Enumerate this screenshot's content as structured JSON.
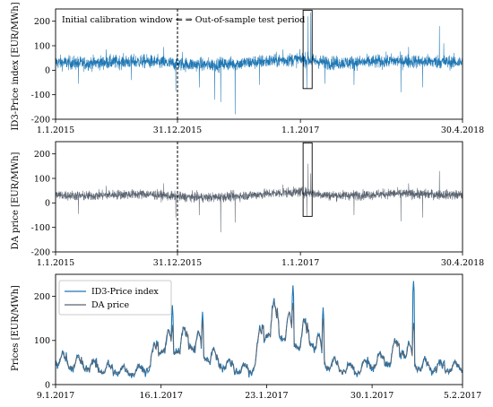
{
  "colors": {
    "id3": "#1f77b4",
    "da": "#5a6470"
  },
  "chart_data": [
    {
      "type": "line",
      "ylabel": "ID3-Price index [EUR/MWh]",
      "ylim": [
        -200,
        250
      ],
      "yticks": [
        -200,
        -100,
        0,
        100,
        200
      ],
      "xticks": [
        "1.1.2015",
        "31.12.2015",
        "1.1.2017",
        "30.4.2018"
      ],
      "xrange": [
        "2015-01-01",
        "2018-04-30"
      ],
      "annotation": "Initial calibration window ⇐ ⇒ Out-of-sample test period",
      "split_date": "2015-12-31",
      "highlight": {
        "x_from": "2017-01-09",
        "x_to": "2017-02-05",
        "y_from": -75,
        "y_to": 245
      },
      "series": [
        {
          "color": "id3",
          "baseline": [
            [
              "2015-01-01",
              32
            ],
            [
              "2015-04-01",
              28
            ],
            [
              "2015-07-01",
              34
            ],
            [
              "2015-10-01",
              36
            ],
            [
              "2016-01-01",
              25
            ],
            [
              "2016-04-01",
              22
            ],
            [
              "2016-07-01",
              28
            ],
            [
              "2016-10-01",
              38
            ],
            [
              "2017-01-01",
              45
            ],
            [
              "2017-04-01",
              30
            ],
            [
              "2017-07-01",
              32
            ],
            [
              "2017-10-01",
              38
            ],
            [
              "2018-01-01",
              36
            ],
            [
              "2018-04-30",
              32
            ]
          ],
          "noise": 20,
          "spikes": [
            [
              "2015-03-10",
              -55
            ],
            [
              "2015-06-01",
              85
            ],
            [
              "2015-08-15",
              -40
            ],
            [
              "2015-11-20",
              95
            ],
            [
              "2015-12-26",
              -85
            ],
            [
              "2016-01-15",
              75
            ],
            [
              "2016-03-05",
              -70
            ],
            [
              "2016-04-20",
              -120
            ],
            [
              "2016-05-08",
              -130
            ],
            [
              "2016-06-20",
              -180
            ],
            [
              "2016-09-01",
              -60
            ],
            [
              "2016-11-10",
              85
            ],
            [
              "2017-01-24",
              220
            ],
            [
              "2017-02-01",
              235
            ],
            [
              "2017-01-20",
              -75
            ],
            [
              "2017-03-15",
              -55
            ],
            [
              "2017-06-10",
              -60
            ],
            [
              "2017-10-28",
              -90
            ],
            [
              "2017-11-20",
              95
            ],
            [
              "2018-01-01",
              -70
            ],
            [
              "2018-02-20",
              180
            ],
            [
              "2018-03-05",
              110
            ]
          ]
        }
      ]
    },
    {
      "type": "line",
      "ylabel": "DA price [EUR/MWh]",
      "ylim": [
        -200,
        250
      ],
      "yticks": [
        -200,
        -100,
        0,
        100,
        200
      ],
      "xticks": [
        "1.1.2015",
        "31.12.2015",
        "1.1.2017",
        "30.4.2018"
      ],
      "xrange": [
        "2015-01-01",
        "2018-04-30"
      ],
      "split_date": "2015-12-31",
      "highlight": {
        "x_from": "2017-01-09",
        "x_to": "2017-02-05",
        "y_from": -55,
        "y_to": 245
      },
      "series": [
        {
          "color": "da",
          "baseline": [
            [
              "2015-01-01",
              32
            ],
            [
              "2015-04-01",
              28
            ],
            [
              "2015-07-01",
              34
            ],
            [
              "2015-10-01",
              36
            ],
            [
              "2016-01-01",
              25
            ],
            [
              "2016-04-01",
              22
            ],
            [
              "2016-07-01",
              28
            ],
            [
              "2016-10-01",
              38
            ],
            [
              "2017-01-01",
              45
            ],
            [
              "2017-04-01",
              30
            ],
            [
              "2017-07-01",
              32
            ],
            [
              "2017-10-01",
              38
            ],
            [
              "2018-01-01",
              36
            ],
            [
              "2018-04-30",
              32
            ]
          ],
          "noise": 14,
          "spikes": [
            [
              "2015-03-10",
              -45
            ],
            [
              "2015-06-01",
              70
            ],
            [
              "2015-11-20",
              80
            ],
            [
              "2015-12-26",
              -60
            ],
            [
              "2016-03-05",
              -50
            ],
            [
              "2016-05-08",
              -120
            ],
            [
              "2016-06-20",
              -80
            ],
            [
              "2016-11-10",
              75
            ],
            [
              "2017-01-24",
              160
            ],
            [
              "2017-02-01",
              120
            ],
            [
              "2017-01-20",
              -55
            ],
            [
              "2017-06-10",
              -50
            ],
            [
              "2017-10-28",
              -75
            ],
            [
              "2017-11-20",
              80
            ],
            [
              "2018-01-01",
              -60
            ],
            [
              "2018-02-20",
              130
            ]
          ]
        }
      ]
    },
    {
      "type": "line",
      "ylabel": "Prices [EUR/MWh]",
      "ylim": [
        0,
        250
      ],
      "yticks": [
        0,
        100,
        200
      ],
      "xticks": [
        "9.1.2017",
        "16.1.2017",
        "23.1.2017",
        "30.1.2017",
        "5.2.2017"
      ],
      "xrange": [
        "2017-01-09",
        "2017-02-05"
      ],
      "legend": [
        "ID3-Price index",
        "DA price"
      ],
      "legend_position": "top-left",
      "daily_profile": [
        [
          "2017-01-09",
          72
        ],
        [
          "2017-01-10",
          60
        ],
        [
          "2017-01-11",
          55
        ],
        [
          "2017-01-12",
          45
        ],
        [
          "2017-01-13",
          40
        ],
        [
          "2017-01-14",
          35
        ],
        [
          "2017-01-15",
          45
        ],
        [
          "2017-01-16",
          115
        ],
        [
          "2017-01-17",
          110
        ],
        [
          "2017-01-18",
          130
        ],
        [
          "2017-01-19",
          85
        ],
        [
          "2017-01-20",
          60
        ],
        [
          "2017-01-21",
          45
        ],
        [
          "2017-01-22",
          40
        ],
        [
          "2017-01-23",
          175
        ],
        [
          "2017-01-24",
          165
        ],
        [
          "2017-01-25",
          130
        ],
        [
          "2017-01-26",
          140
        ],
        [
          "2017-01-27",
          60
        ],
        [
          "2017-01-28",
          45
        ],
        [
          "2017-01-29",
          40
        ],
        [
          "2017-01-30",
          60
        ],
        [
          "2017-01-31",
          70
        ],
        [
          "2017-02-01",
          110
        ],
        [
          "2017-02-02",
          55
        ],
        [
          "2017-02-03",
          50
        ],
        [
          "2017-02-04",
          45
        ],
        [
          "2017-02-05",
          50
        ]
      ],
      "peaks": [
        [
          "2017-01-24",
          225,
          185
        ],
        [
          "2017-01-26",
          175,
          150
        ],
        [
          "2017-02-01",
          235,
          140
        ],
        [
          "2017-01-18",
          165,
          145
        ],
        [
          "2017-01-16",
          180,
          135
        ]
      ],
      "series": [
        {
          "name": "ID3-Price index",
          "color": "id3"
        },
        {
          "name": "DA price",
          "color": "da"
        }
      ]
    }
  ]
}
